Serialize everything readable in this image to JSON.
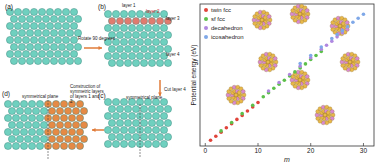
{
  "chart_data": {
    "type": "scatter",
    "xlabel": "m",
    "ylabel": "Potential energy (eV)",
    "xlim": [
      -1,
      32
    ],
    "ylim": [
      0,
      32
    ],
    "xticks": [
      0,
      10,
      20,
      30
    ],
    "tick_labels": "x",
    "legend": "upper left",
    "marker": "circle",
    "series": [
      {
        "name": "twin fcc",
        "color": "#e0443a",
        "x": [
          1,
          2,
          3,
          4,
          5,
          6,
          7,
          8,
          9,
          10
        ],
        "values": [
          1.3,
          2.2,
          3.1,
          4.1,
          5.0,
          6.0,
          6.9,
          7.9,
          8.8,
          9.8
        ]
      },
      {
        "name": "sf fcc",
        "color": "#5cc04a",
        "x": [
          3,
          5,
          7,
          9,
          11,
          12,
          13,
          14,
          15,
          16,
          17,
          18,
          19,
          20,
          21,
          22
        ],
        "values": [
          3.4,
          5.3,
          7.3,
          9.2,
          11.1,
          12.0,
          13.0,
          13.9,
          14.8,
          15.8,
          16.7,
          17.6,
          18.5,
          19.5,
          20.4,
          21.3
        ]
      },
      {
        "name": "decahedron",
        "color": "#b087e0",
        "x": [
          12,
          14,
          16,
          18,
          20,
          22,
          23,
          24,
          25,
          26
        ],
        "values": [
          12.4,
          14.3,
          16.1,
          18.0,
          19.9,
          21.8,
          22.7,
          23.6,
          24.6,
          25.5
        ]
      },
      {
        "name": "icosahedron",
        "color": "#7fa8e8",
        "x": [
          18,
          20,
          22,
          24,
          25,
          26,
          27,
          28,
          29,
          30
        ],
        "values": [
          18.6,
          20.4,
          22.3,
          24.2,
          25.1,
          26.0,
          26.9,
          27.9,
          28.8,
          29.7
        ]
      }
    ]
  },
  "diagram": {
    "panels": [
      {
        "label": "(a)"
      },
      {
        "label": "(b)"
      },
      {
        "label": "(c)"
      },
      {
        "label": "(d)"
      }
    ],
    "arrows": [
      {
        "label": "Rotate 90 degrees"
      },
      {
        "label": "Cut layer 4"
      },
      {
        "label": "Construction of symmetric layers of layers 1 and 2"
      }
    ],
    "layers": [
      "layer 1",
      "layer 2",
      "layer 3",
      "layer 4"
    ],
    "planes": [
      "symmetrical plane",
      "symmetrical plane"
    ]
  }
}
